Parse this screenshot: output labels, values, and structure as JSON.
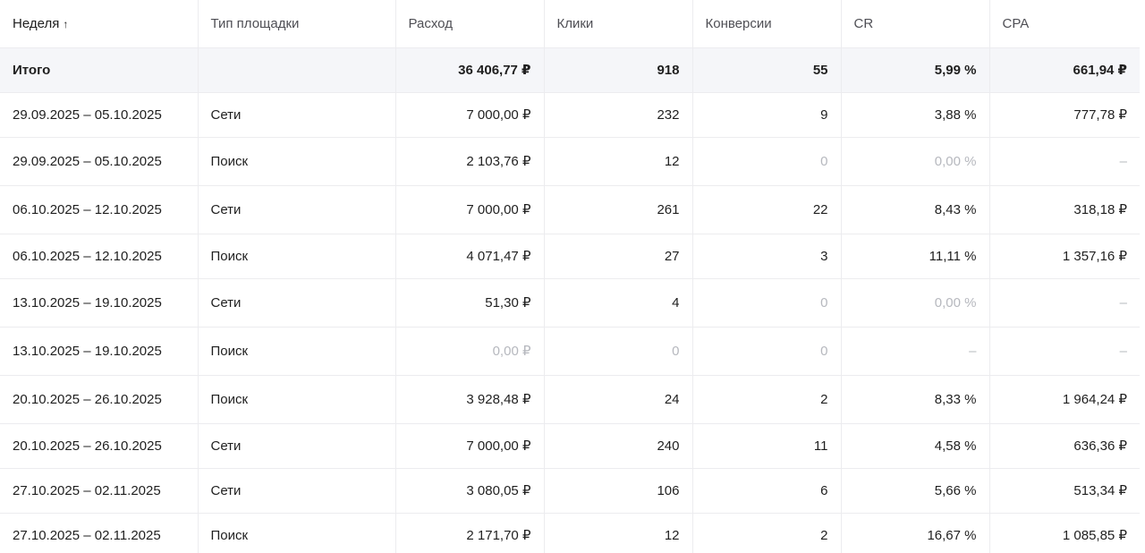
{
  "table": {
    "headers": [
      {
        "label": "Неделя",
        "sort_icon": "↑"
      },
      {
        "label": "Тип площадки"
      },
      {
        "label": "Расход"
      },
      {
        "label": "Клики"
      },
      {
        "label": "Конверсии"
      },
      {
        "label": "CR"
      },
      {
        "label": "CPA"
      }
    ],
    "total": {
      "label": "Итого",
      "type": "",
      "spend": "36 406,77 ₽",
      "clicks": "918",
      "conversions": "55",
      "cr": "5,99 %",
      "cpa": "661,94 ₽"
    },
    "rows": [
      {
        "week": "29.09.2025 – 05.10.2025",
        "type": "Сети",
        "spend": "7 000,00 ₽",
        "clicks": "232",
        "conversions": "9",
        "cr": "3,88 %",
        "cpa": "777,78 ₽"
      },
      {
        "week": "29.09.2025 – 05.10.2025",
        "type": "Поиск",
        "spend": "2 103,76 ₽",
        "clicks": "12",
        "conversions": "0",
        "cr": "0,00 %",
        "cpa": "–"
      },
      {
        "week": "06.10.2025 – 12.10.2025",
        "type": "Сети",
        "spend": "7 000,00 ₽",
        "clicks": "261",
        "conversions": "22",
        "cr": "8,43 %",
        "cpa": "318,18 ₽"
      },
      {
        "week": "06.10.2025 – 12.10.2025",
        "type": "Поиск",
        "spend": "4 071,47 ₽",
        "clicks": "27",
        "conversions": "3",
        "cr": "11,11 %",
        "cpa": "1 357,16 ₽"
      },
      {
        "week": "13.10.2025 – 19.10.2025",
        "type": "Сети",
        "spend": "51,30 ₽",
        "clicks": "4",
        "conversions": "0",
        "cr": "0,00 %",
        "cpa": "–"
      },
      {
        "week": "13.10.2025 – 19.10.2025",
        "type": "Поиск",
        "spend": "0,00 ₽",
        "clicks": "0",
        "conversions": "0",
        "cr": "–",
        "cpa": "–"
      },
      {
        "week": "20.10.2025 – 26.10.2025",
        "type": "Поиск",
        "spend": "3 928,48 ₽",
        "clicks": "24",
        "conversions": "2",
        "cr": "8,33 %",
        "cpa": "1 964,24 ₽"
      },
      {
        "week": "20.10.2025 – 26.10.2025",
        "type": "Сети",
        "spend": "7 000,00 ₽",
        "clicks": "240",
        "conversions": "11",
        "cr": "4,58 %",
        "cpa": "636,36 ₽"
      },
      {
        "week": "27.10.2025 – 02.11.2025",
        "type": "Сети",
        "spend": "3 080,05 ₽",
        "clicks": "106",
        "conversions": "6",
        "cr": "5,66 %",
        "cpa": "513,34 ₽"
      },
      {
        "week": "27.10.2025 – 02.11.2025",
        "type": "Поиск",
        "spend": "2 171,70 ₽",
        "clicks": "12",
        "conversions": "2",
        "cr": "16,67 %",
        "cpa": "1 085,85 ₽"
      }
    ]
  },
  "colors": {
    "text": "#1f1f1f",
    "muted_text": "#b6b8be",
    "header_text": "#4f4f55",
    "total_row_bg": "#f5f6f9",
    "grid_line": "#ececef"
  }
}
